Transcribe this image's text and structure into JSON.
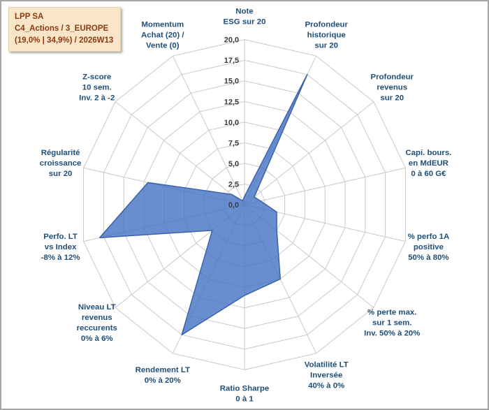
{
  "title_box": {
    "line1": "LPP SA",
    "line2": "C4_Actions / 3_EUROPE",
    "line3": "(19,0% | 34,9%) / 2026W13"
  },
  "chart_data": {
    "type": "radar",
    "title": "LPP SA C4_Actions / 3_EUROPE (19,0% | 34,9%) / 2026W13",
    "axis_min": 0,
    "axis_max": 20,
    "tick_step": 2.5,
    "tick_labels": [
      "0,0",
      "2,5",
      "5,0",
      "7,5",
      "10,0",
      "12,5",
      "15,0",
      "17,5",
      "20,0"
    ],
    "grid": true,
    "legend": "none",
    "axes": [
      {
        "label": "Note ESG sur 20",
        "label_lines": [
          "Note",
          "ESG sur 20"
        ],
        "value": 1.0
      },
      {
        "label": "Profondeur historique sur 20",
        "label_lines": [
          "Profondeur",
          "historique",
          "sur 20"
        ],
        "value": 17.5
      },
      {
        "label": "Profondeur revenus sur 20",
        "label_lines": [
          "Profondeur",
          "revenus",
          "sur 20"
        ],
        "value": 1.5
      },
      {
        "label": "Capi. bours. en MdEUR 0 à 60 G€",
        "label_lines": [
          "Capi. bours.",
          "en MdEUR",
          "0 à 60 G€"
        ],
        "value": 2.0
      },
      {
        "label": "% perfo 1A positive 50% à 80%",
        "label_lines": [
          "% perfo 1A",
          "positive",
          "50% à 80%"
        ],
        "value": 4.0
      },
      {
        "label": "% perte max. sur 1 sem. Inv. 50% à 20%",
        "label_lines": [
          "% perte max.",
          "sur 1 sem.",
          "Inv. 50% à 20%"
        ],
        "value": 5.0
      },
      {
        "label": "Volatilité LT Inversée 40% à 0%",
        "label_lines": [
          "Volatilité LT",
          "Inversée",
          "40% à 0%"
        ],
        "value": 10.0
      },
      {
        "label": "Ratio Sharpe 0 à 1",
        "label_lines": [
          "Ratio Sharpe",
          "0 à 1"
        ],
        "value": 11.0
      },
      {
        "label": "Rendement LT 0% à 20%",
        "label_lines": [
          "Rendement LT",
          "0% à 20%"
        ],
        "value": 17.5
      },
      {
        "label": "Niveau LT revenus reccurents 0% à 6%",
        "label_lines": [
          "Niveau LT",
          "revenus",
          "reccurents",
          "0% à 6%"
        ],
        "value": 5.0
      },
      {
        "label": "Perfo. LT vs Index -8% à 12%",
        "label_lines": [
          "Perfo. LT",
          "vs Index",
          "-8% à 12%"
        ],
        "value": 18.0
      },
      {
        "label": "Régularité croissance sur 20",
        "label_lines": [
          "Régularité",
          "croissance",
          "sur 20"
        ],
        "value": 12.0
      },
      {
        "label": "Z-score 10 sem. Inv. 2 à -2",
        "label_lines": [
          "Z-score",
          "10 sem.",
          "Inv. 2 à -2"
        ],
        "value": 2.0
      },
      {
        "label": "Momentum Achat (20) / Vente (0)",
        "label_lines": [
          "Momentum",
          "Achat (20) /",
          "Vente (0)"
        ],
        "value": 0.5
      }
    ],
    "colors": {
      "series_fill": "#4472C4",
      "series_fill_opacity": "0.8",
      "series_stroke": "#3A62A8",
      "grid_line": "#C9C9C9",
      "axis_label": "#1F4E79",
      "tick_label": "#3B3B3B",
      "title_bg": "#FBE5C9",
      "title_text": "#8A3B12"
    }
  }
}
